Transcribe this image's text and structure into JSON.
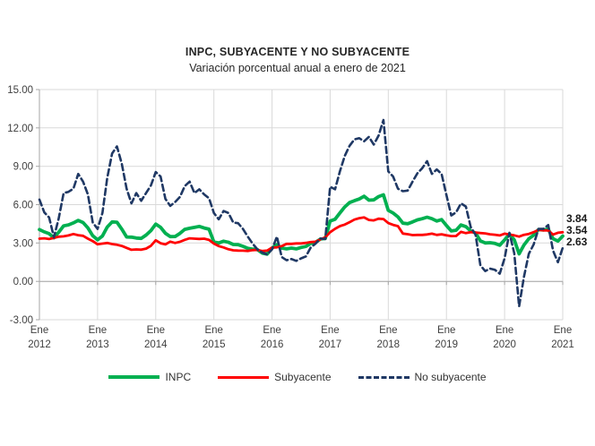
{
  "title": "INPC, SUBYACENTE Y NO SUBYACENTE",
  "subtitle": "Variación porcentual anual a enero de 2021",
  "chart_data": {
    "type": "line",
    "x_unit": "month",
    "x_range": "Ene 2012 - Ene 2021",
    "grid": true,
    "legend_position": "bottom",
    "ylim": [
      -3,
      15
    ],
    "ytick_step": 3,
    "ytick_labels": [
      "15.00",
      "12.00",
      "9.00",
      "6.00",
      "3.00",
      "0.00",
      "-3.00"
    ],
    "xtick_labels": [
      {
        "month": "Ene",
        "year": "2012"
      },
      {
        "month": "Ene",
        "year": "2013"
      },
      {
        "month": "Ene",
        "year": "2014"
      },
      {
        "month": "Ene",
        "year": "2015"
      },
      {
        "month": "Ene",
        "year": "2016"
      },
      {
        "month": "Ene",
        "year": "2017"
      },
      {
        "month": "Ene",
        "year": "2018"
      },
      {
        "month": "Ene",
        "year": "2019"
      },
      {
        "month": "Ene",
        "year": "2020"
      },
      {
        "month": "Ene",
        "year": "2021"
      }
    ],
    "colors": {
      "inpc": "#00B050",
      "subyacente": "#FF0000",
      "no_subyacente": "#1F3864",
      "gridline": "#D9D9D9",
      "axis": "#A6A6A6",
      "tick_text": "#404040"
    },
    "series": [
      {
        "name": "INPC",
        "style": "solid",
        "color": "#00B050",
        "values": [
          4.05,
          3.87,
          3.73,
          3.41,
          3.85,
          4.34,
          4.42,
          4.57,
          4.77,
          4.6,
          4.18,
          3.57,
          3.25,
          3.55,
          4.25,
          4.65,
          4.63,
          4.09,
          3.47,
          3.46,
          3.39,
          3.36,
          3.62,
          3.97,
          4.48,
          4.23,
          3.76,
          3.5,
          3.51,
          3.75,
          4.07,
          4.15,
          4.22,
          4.3,
          4.17,
          4.08,
          3.07,
          3.0,
          3.14,
          3.06,
          2.88,
          2.87,
          2.74,
          2.59,
          2.52,
          2.48,
          2.21,
          2.13,
          2.61,
          2.87,
          2.6,
          2.54,
          2.6,
          2.54,
          2.65,
          2.73,
          2.97,
          3.06,
          3.31,
          3.36,
          4.72,
          4.86,
          5.35,
          5.82,
          6.16,
          6.31,
          6.44,
          6.66,
          6.35,
          6.37,
          6.63,
          6.77,
          5.55,
          5.34,
          5.04,
          4.55,
          4.51,
          4.65,
          4.81,
          4.9,
          5.02,
          4.9,
          4.72,
          4.83,
          4.37,
          3.94,
          4.0,
          4.41,
          4.28,
          3.95,
          3.78,
          3.16,
          3.0,
          3.02,
          2.97,
          2.83,
          3.24,
          3.7,
          3.25,
          2.15,
          2.84,
          3.33,
          3.62,
          4.05,
          4.01,
          4.09,
          3.33,
          3.15,
          3.54
        ]
      },
      {
        "name": "Subyacente",
        "style": "solid",
        "color": "#FF0000",
        "values": [
          3.34,
          3.37,
          3.31,
          3.4,
          3.49,
          3.52,
          3.59,
          3.7,
          3.61,
          3.56,
          3.34,
          3.15,
          2.9,
          2.95,
          3.0,
          2.92,
          2.86,
          2.77,
          2.62,
          2.47,
          2.5,
          2.48,
          2.56,
          2.78,
          3.21,
          2.98,
          2.89,
          3.11,
          3.0,
          3.09,
          3.25,
          3.37,
          3.34,
          3.32,
          3.34,
          3.24,
          2.95,
          2.76,
          2.65,
          2.51,
          2.43,
          2.41,
          2.4,
          2.38,
          2.44,
          2.46,
          2.37,
          2.41,
          2.64,
          2.66,
          2.76,
          2.93,
          2.93,
          2.97,
          2.97,
          3.01,
          3.07,
          3.1,
          3.29,
          3.44,
          3.84,
          4.11,
          4.32,
          4.44,
          4.63,
          4.83,
          4.94,
          5.0,
          4.8,
          4.77,
          4.9,
          4.87,
          4.56,
          4.42,
          4.32,
          3.74,
          3.69,
          3.62,
          3.63,
          3.63,
          3.67,
          3.73,
          3.63,
          3.68,
          3.6,
          3.54,
          3.55,
          3.87,
          3.77,
          3.85,
          3.82,
          3.78,
          3.75,
          3.68,
          3.65,
          3.59,
          3.73,
          3.66,
          3.6,
          3.5,
          3.64,
          3.71,
          3.85,
          4.03,
          3.99,
          3.98,
          3.66,
          3.8,
          3.84
        ]
      },
      {
        "name": "No subyacente",
        "style": "dashed",
        "color": "#1F3864",
        "values": [
          6.4,
          5.4,
          5.0,
          3.45,
          4.95,
          6.9,
          7.0,
          7.25,
          8.4,
          7.8,
          6.8,
          4.6,
          4.1,
          5.35,
          8.1,
          10.0,
          10.55,
          9.2,
          7.25,
          6.1,
          6.9,
          6.3,
          6.9,
          7.5,
          8.55,
          8.2,
          6.45,
          5.9,
          6.2,
          6.6,
          7.45,
          7.8,
          6.9,
          7.2,
          6.8,
          6.5,
          5.35,
          4.85,
          5.5,
          5.35,
          4.6,
          4.55,
          4.1,
          3.5,
          2.95,
          2.5,
          2.25,
          2.1,
          2.5,
          3.5,
          1.9,
          1.65,
          1.75,
          1.6,
          1.8,
          1.95,
          2.65,
          2.95,
          3.35,
          3.3,
          7.4,
          7.2,
          8.6,
          9.8,
          10.6,
          11.1,
          11.2,
          10.95,
          11.3,
          10.7,
          11.4,
          12.62,
          8.6,
          8.2,
          7.25,
          7.05,
          7.1,
          7.8,
          8.45,
          8.85,
          9.4,
          8.4,
          8.75,
          8.4,
          6.75,
          5.15,
          5.4,
          6.1,
          5.85,
          4.25,
          3.65,
          1.25,
          0.8,
          1.0,
          0.9,
          0.6,
          1.8,
          3.8,
          2.2,
          -1.96,
          0.35,
          2.15,
          2.9,
          4.1,
          4.1,
          4.4,
          2.4,
          1.5,
          2.63
        ]
      }
    ],
    "end_labels": [
      "3.84",
      "3.54",
      "2.63"
    ]
  }
}
